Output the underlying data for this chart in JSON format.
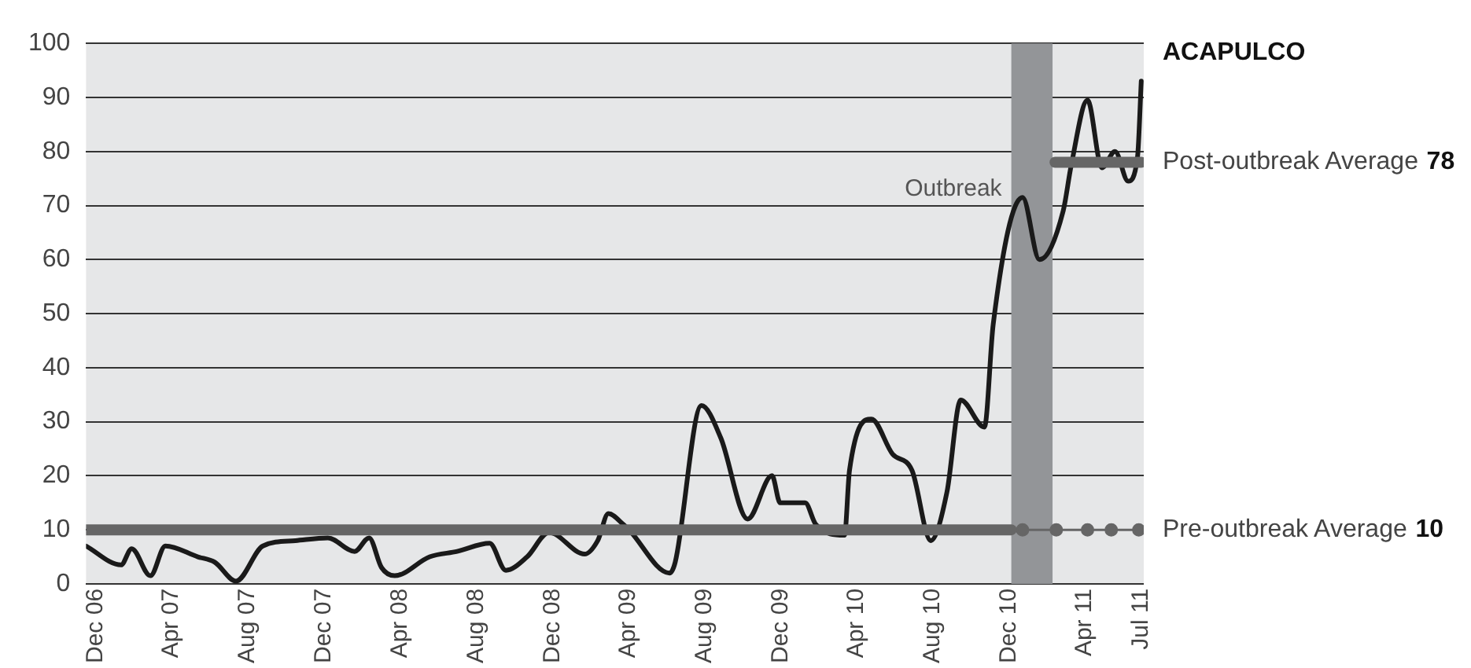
{
  "chart_data": {
    "type": "line",
    "title": "ACAPULCO",
    "xlim": [
      "2006-11-15",
      "2011-07-05"
    ],
    "xticks": [
      {
        "value": "2006-12-01",
        "label": "Dec 06"
      },
      {
        "value": "2007-04-01",
        "label": "Apr 07"
      },
      {
        "value": "2007-08-01",
        "label": "Aug 07"
      },
      {
        "value": "2007-12-01",
        "label": "Dec 07"
      },
      {
        "value": "2008-04-01",
        "label": "Apr 08"
      },
      {
        "value": "2008-08-01",
        "label": "Aug 08"
      },
      {
        "value": "2008-12-01",
        "label": "Dec 08"
      },
      {
        "value": "2009-04-01",
        "label": "Apr 09"
      },
      {
        "value": "2009-08-01",
        "label": "Aug 09"
      },
      {
        "value": "2009-12-01",
        "label": "Dec 09"
      },
      {
        "value": "2010-04-01",
        "label": "Apr 10"
      },
      {
        "value": "2010-08-01",
        "label": "Aug 10"
      },
      {
        "value": "2010-12-01",
        "label": "Dec 10"
      },
      {
        "value": "2011-04-01",
        "label": "Apr 11"
      },
      {
        "value": "2011-07-01",
        "label": "Jul 11"
      }
    ],
    "ylim": [
      0,
      100
    ],
    "yticks": [
      0,
      10,
      20,
      30,
      40,
      50,
      60,
      70,
      80,
      90,
      100
    ],
    "grid": "y",
    "legend": false,
    "bands": [
      {
        "axis": "x",
        "from": "2010-12-05",
        "to": "2011-02-09",
        "label": "Outbreak",
        "color": "#939598"
      }
    ],
    "series": [
      {
        "name": "Pre-outbreak Average 10",
        "color": "#666666",
        "x": [
          "2006-11-15",
          "2010-12-05"
        ],
        "values": [
          10,
          10
        ]
      },
      {
        "color": "#666666",
        "marker": "circle",
        "x": [
          "2010-12-23",
          "2011-02-15",
          "2011-04-06",
          "2011-05-14",
          "2011-06-27"
        ],
        "values": [
          10,
          10,
          10,
          10,
          10
        ]
      },
      {
        "name": "Post-outbreak Average 78",
        "color": "#666666",
        "x": [
          "2011-02-13",
          "2011-07-01"
        ],
        "values": [
          78,
          78
        ]
      },
      {
        "color": "#1a1a1a",
        "x": [
          "2006-11-15",
          "2007-01-10",
          "2007-01-27",
          "2007-02-26",
          "2007-03-22",
          "2007-05-13",
          "2007-06-09",
          "2007-07-13",
          "2007-08-25",
          "2007-10-16",
          "2007-12-07",
          "2008-01-19",
          "2008-02-11",
          "2008-03-02",
          "2008-03-23",
          "2008-05-18",
          "2008-07-01",
          "2008-08-22",
          "2008-09-17",
          "2008-10-21",
          "2008-11-25",
          "2009-01-21",
          "2009-02-11",
          "2009-02-28",
          "2009-03-24",
          "2009-04-02",
          "2009-06-06",
          "2009-06-15",
          "2009-07-27",
          "2009-08-27",
          "2009-10-09",
          "2009-11-17",
          "2009-11-30",
          "2010-01-09",
          "2010-01-26",
          "2010-03-13",
          "2010-03-21",
          "2010-04-25",
          "2010-05-29",
          "2010-06-29",
          "2010-07-29",
          "2010-08-24",
          "2010-09-15",
          "2010-10-23",
          "2010-11-06",
          "2010-12-23",
          "2011-01-19",
          "2011-02-26",
          "2011-03-11",
          "2011-04-06",
          "2011-04-29",
          "2011-05-20",
          "2011-06-10",
          "2011-06-25",
          "2011-07-01"
        ],
        "values": [
          7,
          3.5,
          6.5,
          1.5,
          7,
          5,
          4,
          0.5,
          7,
          8,
          8.5,
          6,
          8.5,
          3,
          1.5,
          5,
          6,
          7.5,
          2.5,
          5,
          9.5,
          5.5,
          8,
          13,
          11,
          10,
          2,
          4,
          33,
          27,
          12,
          20,
          15,
          15,
          11,
          9,
          21,
          30.5,
          24,
          21,
          8,
          17,
          34,
          29,
          48,
          71.5,
          60,
          69,
          77.5,
          89.5,
          77,
          80,
          74.5,
          79,
          93
        ]
      }
    ]
  }
}
